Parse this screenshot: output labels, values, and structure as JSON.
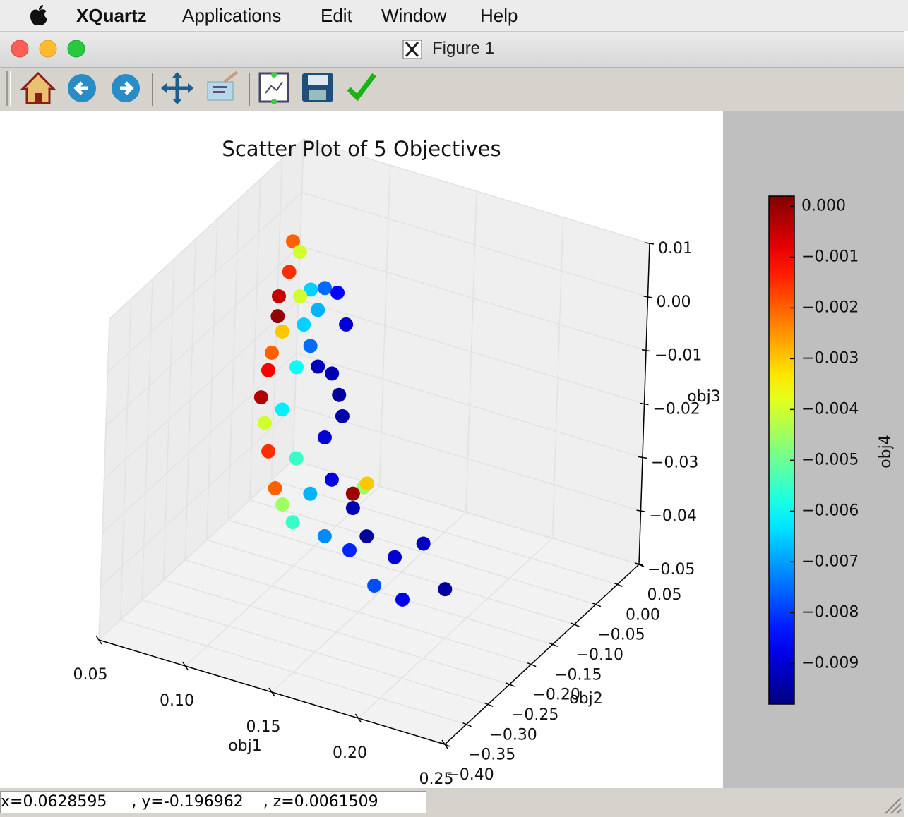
{
  "menu_bar": {
    "app": "XQuartz",
    "items": [
      "Applications",
      "Edit",
      "Window",
      "Help"
    ]
  },
  "window": {
    "title": "Figure 1"
  },
  "chart_data": {
    "type": "scatter3d",
    "title": "Scatter Plot of 5 Objectives",
    "x_label": "obj1",
    "y_label": "obj2",
    "z_label": "obj3",
    "color_label": "obj4",
    "colormap": "jet",
    "x": [
      0.0604,
      0.0637,
      0.0699,
      0.0776,
      0.0838,
      0.0886,
      0.0952,
      0.1007,
      0.1091,
      0.1172,
      0.126,
      0.137,
      0.1425,
      0.148,
      0.0754,
      0.0774,
      0.0864,
      0.0996,
      0.1128,
      0.128,
      0.139,
      0.1548,
      0.0832,
      0.096,
      0.0996,
      0.1156,
      0.124,
      0.1396,
      0.1556,
      0.169,
      0.185,
      0.1906,
      0.212,
      0.201,
      0.187,
      0.1676,
      0.1526,
      0.1527,
      0.151,
      0.1234,
      0.1066,
      0.093,
      0.0776,
      0.082
    ],
    "y": [
      -0.0107,
      -0.007,
      -0.057,
      -0.112,
      -0.139,
      -0.147,
      -0.198,
      -0.228,
      -0.278,
      -0.301,
      -0.327,
      -0.354,
      -0.358,
      -0.355,
      -0.027,
      -0.002,
      -0.087,
      -0.156,
      -0.242,
      -0.268,
      -0.278,
      -0.306,
      0.0045,
      -0.026,
      -0.105,
      -0.119,
      -0.185,
      -0.23,
      -0.244,
      -0.265,
      -0.263,
      -0.219,
      -0.253,
      -0.308,
      -0.318,
      -0.299,
      -0.208,
      -0.2,
      -0.226,
      -0.142,
      -0.1,
      -0.097,
      -0.061,
      -0.036
    ],
    "z": [
      -0.0036,
      -0.0055,
      -0.0049,
      -0.0046,
      -0.0057,
      -0.0075,
      -0.007,
      -0.0075,
      -0.008,
      -0.0103,
      -0.0128,
      -0.0166,
      -0.0188,
      -0.0218,
      -0.0099,
      -0.0113,
      -0.0109,
      -0.0124,
      -0.0126,
      -0.0183,
      -0.0231,
      -0.0274,
      -0.0121,
      -0.0145,
      -0.0161,
      -0.0188,
      -0.021,
      -0.024,
      -0.0267,
      -0.0291,
      -0.0316,
      -0.0318,
      -0.0357,
      -0.0346,
      -0.0326,
      -0.0293,
      -0.0258,
      -0.0257,
      -0.0258,
      -0.0203,
      -0.0171,
      -0.0135,
      -0.0084,
      -0.0124
    ],
    "color_values": [
      -0.002,
      -0.004,
      -0.0015,
      -0.0005,
      0.0,
      -0.003,
      -0.002,
      -0.001,
      -0.0003,
      -0.004,
      -0.0015,
      -0.002,
      -0.0045,
      -0.0055,
      -0.0065,
      -0.0075,
      -0.0065,
      -0.006,
      -0.0062,
      -0.0055,
      -0.0068,
      -0.0072,
      -0.0085,
      -0.009,
      -0.0092,
      -0.0095,
      -0.009,
      -0.0088,
      -0.0093,
      -0.0095,
      -0.009,
      -0.0092,
      -0.0095,
      -0.0088,
      -0.0078,
      -0.0082,
      -0.0045,
      -0.003,
      -0.0001,
      -0.0094,
      -0.0093,
      -0.0075,
      -0.004,
      -0.0068
    ],
    "xlim": [
      0.05,
      0.25
    ],
    "xticks": [
      0.05,
      {
        "value": 0.1,
        "label": "0.10"
      },
      0.15,
      {
        "value": 0.2,
        "label": "0.20"
      },
      0.25
    ],
    "ylim": [
      -0.4,
      0.05
    ],
    "yticks": [
      0.05,
      {
        "value": 0,
        "label": "0.00"
      },
      {
        "value": -0.05,
        "label": "−0.05"
      },
      {
        "value": -0.1,
        "label": "−0.10"
      },
      {
        "value": -0.15,
        "label": "−0.15"
      },
      {
        "value": -0.2,
        "label": "−0.20"
      },
      {
        "value": -0.25,
        "label": "−0.25"
      },
      {
        "value": -0.3,
        "label": "−0.30"
      },
      {
        "value": -0.35,
        "label": "−0.35"
      },
      {
        "value": -0.4,
        "label": "−0.40"
      }
    ],
    "zlim": [
      -0.05,
      0.01
    ],
    "zticks": [
      0.01,
      {
        "value": 0,
        "label": "0.00"
      },
      {
        "value": -0.01,
        "label": "−0.01"
      },
      {
        "value": -0.02,
        "label": "−0.02"
      },
      {
        "value": -0.03,
        "label": "−0.03"
      },
      {
        "value": -0.04,
        "label": "−0.04"
      },
      {
        "value": -0.05,
        "label": "−0.05"
      }
    ],
    "clim": [
      -0.0098,
      0.0002
    ],
    "cticks": [
      {
        "value": 0,
        "label": "0.000"
      },
      {
        "value": -0.001,
        "label": "−0.001"
      },
      {
        "value": -0.002,
        "label": "−0.002"
      },
      {
        "value": -0.003,
        "label": "−0.003"
      },
      {
        "value": -0.004,
        "label": "−0.004"
      },
      {
        "value": -0.005,
        "label": "−0.005"
      },
      {
        "value": -0.006,
        "label": "−0.006"
      },
      {
        "value": -0.007,
        "label": "−0.007"
      },
      {
        "value": -0.008,
        "label": "−0.008"
      },
      {
        "value": -0.009,
        "label": "−0.009"
      }
    ],
    "grid": true
  },
  "status_bar": {
    "text": "x=0.0628595     , y=-0.196962    , z=0.0061509"
  }
}
